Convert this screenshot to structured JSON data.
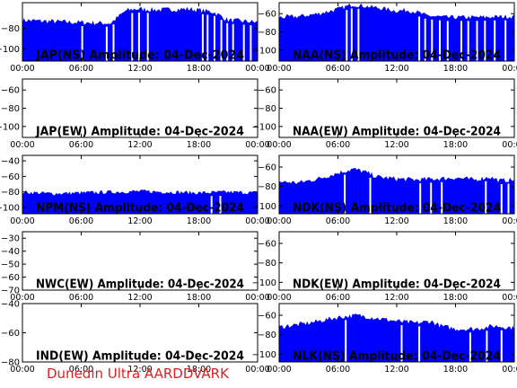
{
  "footer": "Dunedin Ultra AARDDVARK",
  "colors": {
    "series": "#0000ff",
    "axis": "#000000",
    "footer": "#e02020",
    "background": "#ffffff"
  },
  "x_ticks": [
    "00:00",
    "06:00",
    "12:00",
    "18:00",
    "00:00"
  ],
  "chart_data": [
    {
      "type": "area",
      "title": "JAP(NS) Amplitude: 04-Dec-2024",
      "yticks": [
        -80,
        -100
      ],
      "ylim": [
        -112,
        -55
      ],
      "xlim_hours": [
        0,
        24
      ],
      "profile": [
        [
          0,
          -72
        ],
        [
          5,
          -74
        ],
        [
          9,
          -75
        ],
        [
          10.5,
          -63
        ],
        [
          11.5,
          -61
        ],
        [
          14,
          -62
        ],
        [
          17,
          -61
        ],
        [
          19.5,
          -64
        ],
        [
          21,
          -72
        ],
        [
          24,
          -74
        ]
      ],
      "dropouts": [
        6.1,
        8.6,
        9.3,
        11.2,
        11.9,
        12.8,
        18.4,
        18.9,
        19.6,
        20.3,
        20.9,
        21.5,
        22.6,
        23.3
      ]
    },
    {
      "type": "area",
      "title": "NAA(NS) Amplitude: 04-Dec-2024",
      "yticks": [
        -60,
        -80,
        -100
      ],
      "ylim": [
        -112,
        -48
      ],
      "xlim_hours": [
        0,
        24
      ],
      "profile": [
        [
          0,
          -64
        ],
        [
          2,
          -63
        ],
        [
          4,
          -60
        ],
        [
          6,
          -55
        ],
        [
          7.5,
          -50
        ],
        [
          9,
          -52
        ],
        [
          11,
          -55
        ],
        [
          12,
          -57
        ],
        [
          13,
          -56
        ],
        [
          14,
          -58
        ],
        [
          15,
          -62
        ],
        [
          17,
          -64
        ],
        [
          20,
          -64
        ],
        [
          24,
          -63
        ]
      ],
      "dropouts": [
        6.9,
        7.4,
        8.1,
        14.3,
        14.9,
        15.6,
        16.4,
        17.2,
        18.6,
        19.3,
        20.2,
        21.0,
        22.0,
        23.1
      ]
    },
    {
      "type": "area",
      "title": "JAP(EW) Amplitude: 04-Dec-2024",
      "yticks": [
        -60,
        -80,
        -100
      ],
      "ylim": [
        -112,
        -48
      ],
      "xlim_hours": [
        0,
        24
      ],
      "profile": [],
      "dropouts": []
    },
    {
      "type": "area",
      "title": "NAA(EW) Amplitude: 04-Dec-2024",
      "yticks": [
        -60,
        -80,
        -100
      ],
      "ylim": [
        -112,
        -48
      ],
      "xlim_hours": [
        0,
        24
      ],
      "profile": [],
      "dropouts": []
    },
    {
      "type": "area",
      "title": "NPM(NS) Amplitude: 04-Dec-2024",
      "yticks": [
        -40,
        -60,
        -80,
        -100
      ],
      "ylim": [
        -108,
        -33
      ],
      "xlim_hours": [
        0,
        24
      ],
      "profile": [
        [
          0,
          -80
        ],
        [
          3,
          -82
        ],
        [
          6,
          -81
        ],
        [
          9,
          -80
        ],
        [
          12,
          -79
        ],
        [
          15,
          -80
        ],
        [
          18,
          -81
        ],
        [
          21,
          -80
        ],
        [
          24,
          -81
        ]
      ],
      "dropouts": [
        19.3,
        20.2
      ]
    },
    {
      "type": "area",
      "title": "NDK(NS) Amplitude: 04-Dec-2024",
      "yticks": [
        -60,
        -80,
        -100
      ],
      "ylim": [
        -108,
        -48
      ],
      "xlim_hours": [
        0,
        24
      ],
      "profile": [
        [
          0,
          -75
        ],
        [
          2,
          -76
        ],
        [
          4,
          -72
        ],
        [
          6,
          -66
        ],
        [
          7.5,
          -62
        ],
        [
          8.5,
          -64
        ],
        [
          10,
          -70
        ],
        [
          12,
          -72
        ],
        [
          14,
          -73
        ],
        [
          16,
          -72
        ],
        [
          18,
          -71
        ],
        [
          20,
          -73
        ],
        [
          21.5,
          -70
        ],
        [
          22.5,
          -74
        ],
        [
          24,
          -73
        ]
      ],
      "dropouts": [
        6.7,
        9.3,
        14.4,
        15.5,
        16.6,
        21.1,
        22.7,
        23.4
      ]
    },
    {
      "type": "area",
      "title": "NWC(EW) Amplitude: 04-Dec-2024",
      "yticks": [
        -30,
        -40,
        -50,
        -60,
        -70
      ],
      "ylim": [
        -70,
        -25
      ],
      "xlim_hours": [
        0,
        24
      ],
      "profile": [],
      "dropouts": []
    },
    {
      "type": "area",
      "title": "NDK(EW) Amplitude: 04-Dec-2024",
      "yticks": [
        -60,
        -80,
        -100
      ],
      "ylim": [
        -108,
        -48
      ],
      "xlim_hours": [
        0,
        24
      ],
      "profile": [],
      "dropouts": []
    },
    {
      "type": "area",
      "title": "IND(EW) Amplitude: 04-Dec-2024",
      "yticks": [
        -40,
        -60,
        -80
      ],
      "ylim": [
        -80,
        -40
      ],
      "xlim_hours": [
        0,
        24
      ],
      "profile": [],
      "dropouts": []
    },
    {
      "type": "area",
      "title": "NLK(NS) Amplitude: 04-Dec-2024",
      "yticks": [
        -60,
        -80,
        -100
      ],
      "ylim": [
        -108,
        -48
      ],
      "xlim_hours": [
        0,
        24
      ],
      "profile": [
        [
          0,
          -72
        ],
        [
          3,
          -68
        ],
        [
          6,
          -62
        ],
        [
          8,
          -60
        ],
        [
          10,
          -63
        ],
        [
          12,
          -66
        ],
        [
          14,
          -68
        ],
        [
          15.5,
          -66
        ],
        [
          16.5,
          -71
        ],
        [
          18,
          -74
        ],
        [
          20,
          -74
        ],
        [
          22,
          -71
        ],
        [
          24,
          -73
        ]
      ],
      "dropouts": [
        6.8,
        12.5,
        14.3,
        19.5,
        21.2,
        22.7
      ]
    }
  ]
}
